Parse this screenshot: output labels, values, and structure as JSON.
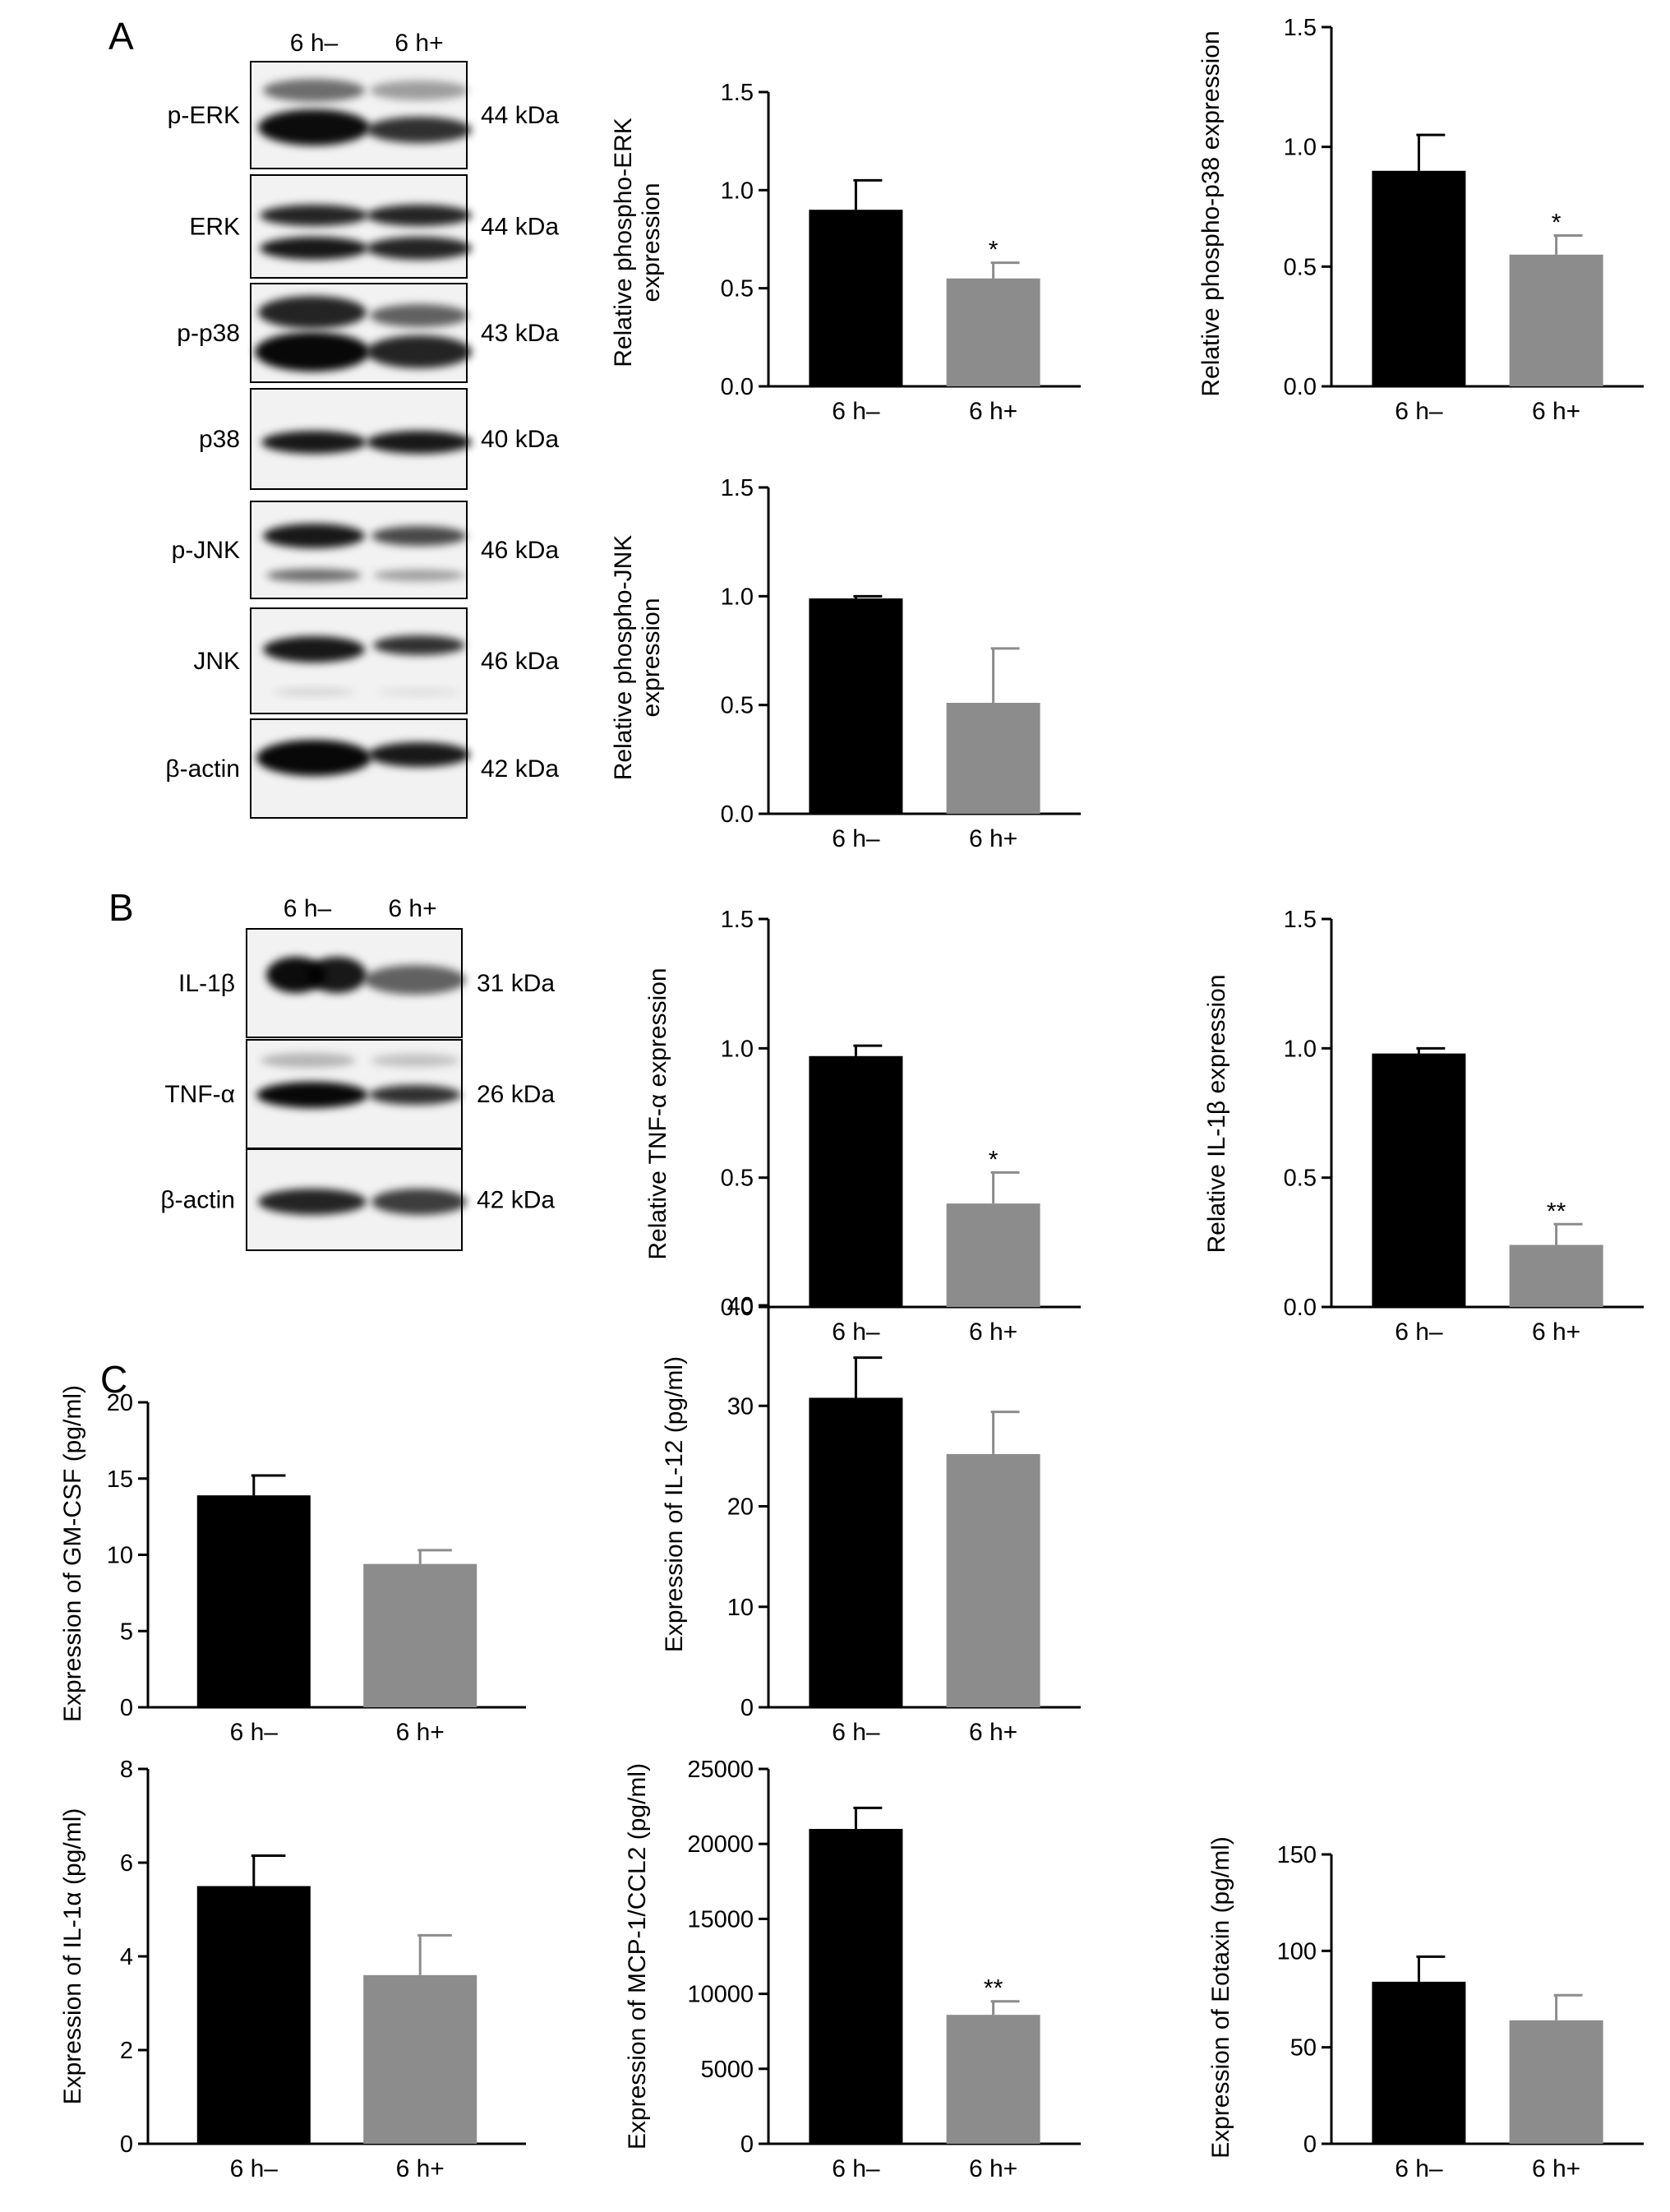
{
  "panels": {
    "A": "A",
    "B": "B",
    "C": "C"
  },
  "western_blots": [
    {
      "panel": "A",
      "lanes": [
        "6 h–",
        "6 h+"
      ],
      "rows": [
        {
          "label": "p-ERK",
          "kda": "44 kDa"
        },
        {
          "label": "ERK",
          "kda": "44 kDa"
        },
        {
          "label": "p-p38",
          "kda": "43 kDa"
        },
        {
          "label": "p38",
          "kda": "40 kDa"
        },
        {
          "label": "p-JNK",
          "kda": "46 kDa"
        },
        {
          "label": "JNK",
          "kda": "46 kDa"
        },
        {
          "label": "β-actin",
          "kda": "42 kDa"
        }
      ]
    },
    {
      "panel": "B",
      "lanes": [
        "6 h–",
        "6 h+"
      ],
      "rows": [
        {
          "label": "IL-1β",
          "kda": "31 kDa"
        },
        {
          "label": "TNF-α",
          "kda": "26 kDa"
        },
        {
          "label": "β-actin",
          "kda": "42 kDa"
        }
      ]
    }
  ],
  "colors": {
    "control": "#000000",
    "treated": "#8c8c8c",
    "axis": "#000000"
  },
  "chart_data": [
    {
      "id": "perk",
      "type": "bar",
      "categories": [
        "6 h–",
        "6 h+"
      ],
      "values": [
        0.9,
        0.55
      ],
      "errors": [
        0.15,
        0.08
      ],
      "ylabel": [
        "Relative phospho-ERK",
        "expression"
      ],
      "ylim": [
        0,
        1.5
      ],
      "yticks": [
        "0.0",
        "0.5",
        "1.0",
        "1.5"
      ],
      "significance": [
        "",
        "*"
      ]
    },
    {
      "id": "pp38",
      "type": "bar",
      "categories": [
        "6 h–",
        "6 h+"
      ],
      "values": [
        0.9,
        0.55
      ],
      "errors": [
        0.15,
        0.08
      ],
      "ylabel": [
        "Relative phospho-p38 expression"
      ],
      "ylim": [
        0,
        1.5
      ],
      "yticks": [
        "0.0",
        "0.5",
        "1.0",
        "1.5"
      ],
      "significance": [
        "",
        "*"
      ]
    },
    {
      "id": "pjnk",
      "type": "bar",
      "categories": [
        "6 h–",
        "6 h+"
      ],
      "values": [
        0.99,
        0.51
      ],
      "errors": [
        0.01,
        0.25
      ],
      "ylabel": [
        "Relative phospho-JNK",
        "expression"
      ],
      "ylim": [
        0,
        1.5
      ],
      "yticks": [
        "0.0",
        "0.5",
        "1.0",
        "1.5"
      ],
      "significance": [
        "",
        ""
      ]
    },
    {
      "id": "tnfa",
      "type": "bar",
      "categories": [
        "6 h–",
        "6 h+"
      ],
      "values": [
        0.97,
        0.4
      ],
      "errors": [
        0.04,
        0.12
      ],
      "ylabel": [
        "Relative TNF-α expression"
      ],
      "ylim": [
        0,
        1.5
      ],
      "yticks": [
        "0.0",
        "0.5",
        "1.0",
        "1.5"
      ],
      "significance": [
        "",
        "*"
      ]
    },
    {
      "id": "il1b",
      "type": "bar",
      "categories": [
        "6 h–",
        "6 h+"
      ],
      "values": [
        0.98,
        0.24
      ],
      "errors": [
        0.02,
        0.08
      ],
      "ylabel": [
        "Relative IL-1β expression"
      ],
      "ylim": [
        0,
        1.5
      ],
      "yticks": [
        "0.0",
        "0.5",
        "1.0",
        "1.5"
      ],
      "significance": [
        "",
        "**"
      ]
    },
    {
      "id": "gmcsf",
      "type": "bar",
      "categories": [
        "6 h–",
        "6 h+"
      ],
      "values": [
        13.9,
        9.4
      ],
      "errors": [
        1.3,
        0.9
      ],
      "ylabel": [
        "Expression of GM-CSF (pg/ml)"
      ],
      "ylim": [
        0,
        20
      ],
      "yticks": [
        "0",
        "5",
        "10",
        "15",
        "20"
      ],
      "significance": [
        "",
        ""
      ]
    },
    {
      "id": "il12",
      "type": "bar",
      "categories": [
        "6 h–",
        "6 h+"
      ],
      "values": [
        30.8,
        25.2
      ],
      "errors": [
        4.0,
        4.2
      ],
      "ylabel": [
        "Expression of IL-12 (pg/ml)"
      ],
      "ylim": [
        0,
        40
      ],
      "yticks": [
        "0",
        "10",
        "20",
        "30",
        "40"
      ],
      "significance": [
        "",
        ""
      ]
    },
    {
      "id": "il1a",
      "type": "bar",
      "categories": [
        "6 h–",
        "6 h+"
      ],
      "values": [
        5.5,
        3.6
      ],
      "errors": [
        0.65,
        0.85
      ],
      "ylabel": [
        "Expression of IL-1α (pg/ml)"
      ],
      "ylim": [
        0,
        8
      ],
      "yticks": [
        "0",
        "2",
        "4",
        "6",
        "8"
      ],
      "significance": [
        "",
        ""
      ]
    },
    {
      "id": "mcp1",
      "type": "bar",
      "categories": [
        "6 h–",
        "6 h+"
      ],
      "values": [
        21000,
        8600
      ],
      "errors": [
        1400,
        900
      ],
      "ylabel": [
        "Expression of MCP-1/CCL2 (pg/ml)"
      ],
      "ylim": [
        0,
        25000
      ],
      "yticks": [
        "0",
        "5000",
        "10000",
        "15000",
        "20000",
        "25000"
      ],
      "significance": [
        "",
        "**"
      ]
    },
    {
      "id": "eotaxin",
      "type": "bar",
      "categories": [
        "6 h–",
        "6 h+"
      ],
      "values": [
        84,
        64
      ],
      "errors": [
        13,
        13
      ],
      "ylabel": [
        "Expression of Eotaxin (pg/ml)"
      ],
      "ylim": [
        0,
        150
      ],
      "yticks": [
        "0",
        "50",
        "100",
        "150"
      ],
      "significance": [
        "",
        ""
      ]
    }
  ]
}
